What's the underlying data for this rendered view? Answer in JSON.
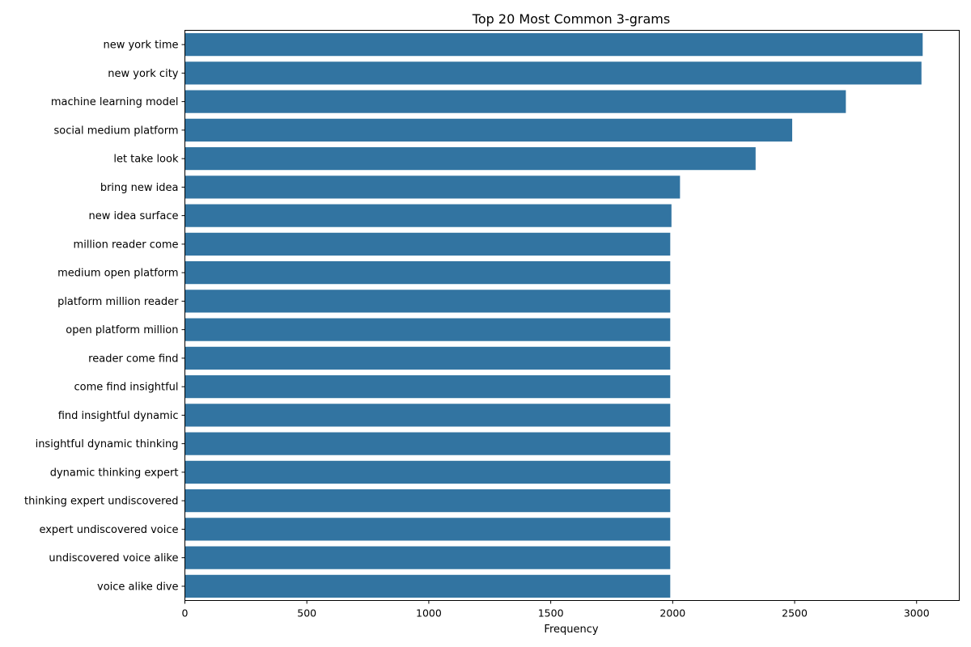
{
  "chart_data": {
    "type": "bar",
    "orientation": "horizontal",
    "title": "Top 20 Most Common 3-grams",
    "xlabel": "Frequency",
    "ylabel": "",
    "xlim": [
      0,
      3175
    ],
    "xticks": [
      0,
      500,
      1000,
      1500,
      2000,
      2500,
      3000
    ],
    "grid": false,
    "bar_color": "#3274a1",
    "categories": [
      "new york time",
      "new york city",
      "machine learning model",
      "social medium platform",
      "let take look",
      "bring new idea",
      "new idea surface",
      "million reader come",
      "medium open platform",
      "platform million reader",
      "open platform million",
      "reader come find",
      "come find insightful",
      "find insightful dynamic",
      "insightful dynamic thinking",
      "dynamic thinking expert",
      "thinking expert undiscovered",
      "expert undiscovered voice",
      "undiscovered voice alike",
      "voice alike dive"
    ],
    "values": [
      3025,
      3020,
      2710,
      2490,
      2340,
      2030,
      1995,
      1990,
      1990,
      1990,
      1990,
      1990,
      1990,
      1990,
      1990,
      1990,
      1990,
      1990,
      1990,
      1990
    ]
  }
}
